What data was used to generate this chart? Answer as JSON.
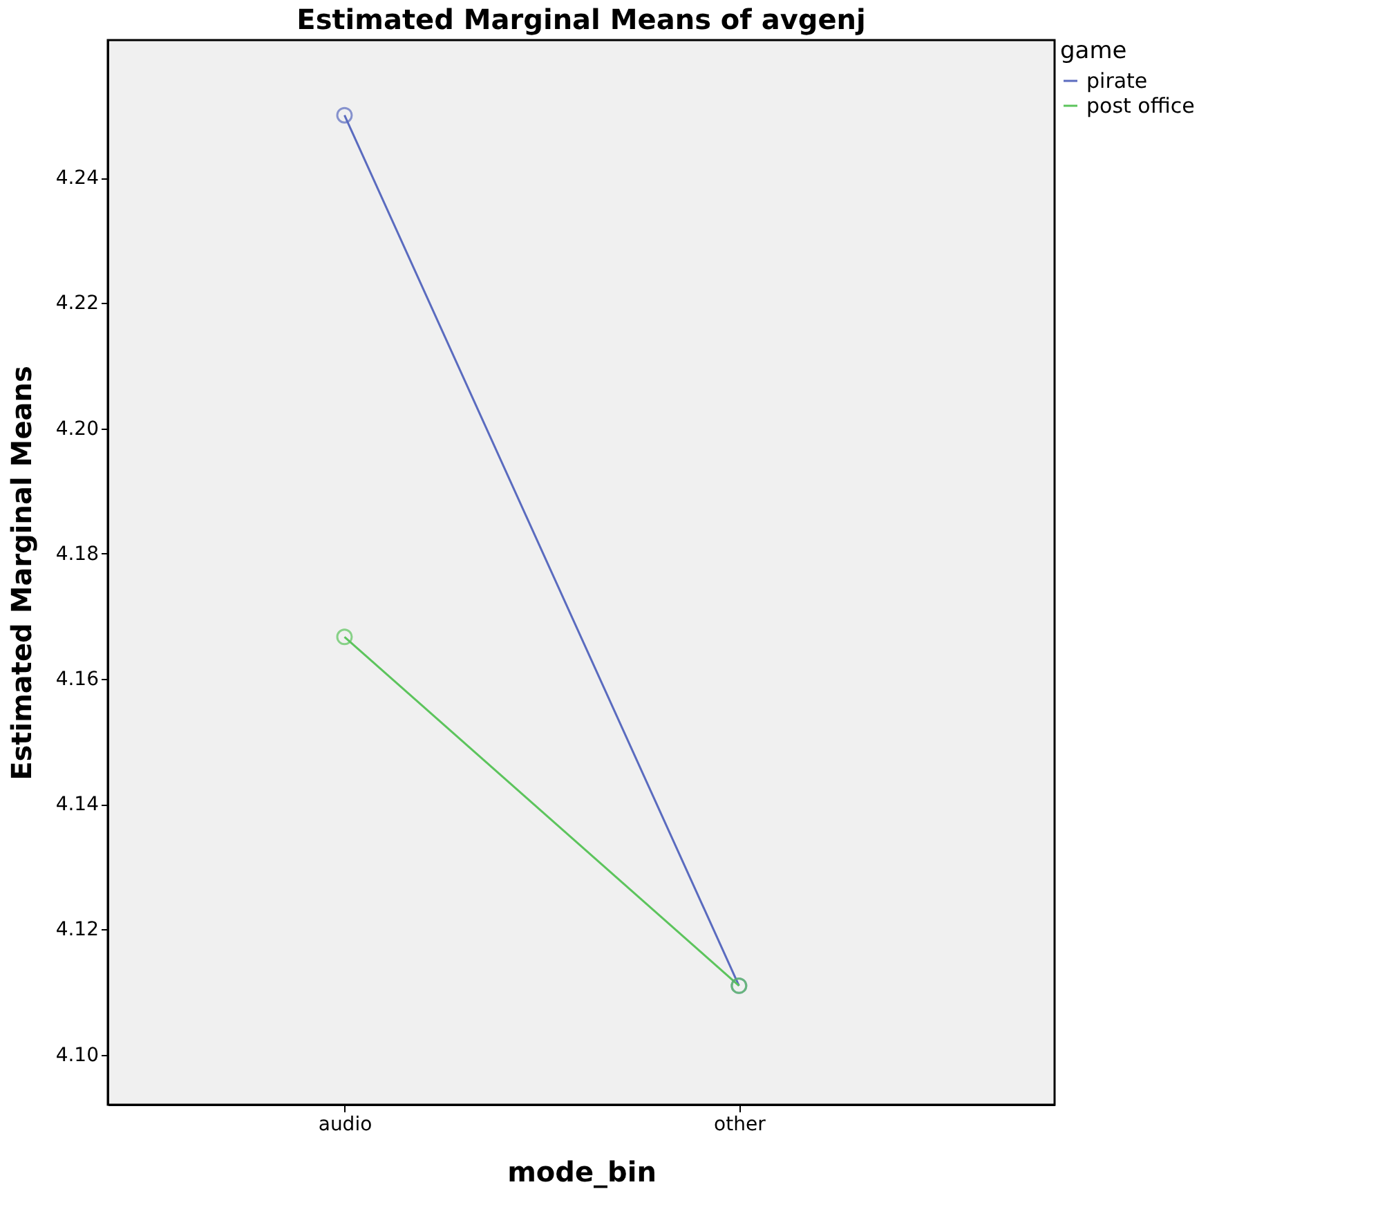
{
  "chart_data": {
    "type": "line",
    "title": "Estimated Marginal Means of avgenj",
    "xlabel": "mode_bin",
    "ylabel": "Estimated Marginal Means",
    "legend_title": "game",
    "categories": [
      "audio",
      "other"
    ],
    "series": [
      {
        "name": "pirate",
        "color": "#5a6bbf",
        "values": [
          4.25,
          4.111
        ]
      },
      {
        "name": "post office",
        "color": "#5cc45c",
        "values": [
          4.1667,
          4.111
        ]
      }
    ],
    "ylim": [
      4.092,
      4.262
    ],
    "yticks": [
      {
        "value": 4.1,
        "label": "4.10"
      },
      4.12,
      4.14,
      4.16,
      4.18,
      {
        "value": 4.2,
        "label": "4.20"
      },
      4.22,
      4.24
    ],
    "marker": "circle",
    "line_style": "solid",
    "grid": false,
    "legend": "top right"
  }
}
